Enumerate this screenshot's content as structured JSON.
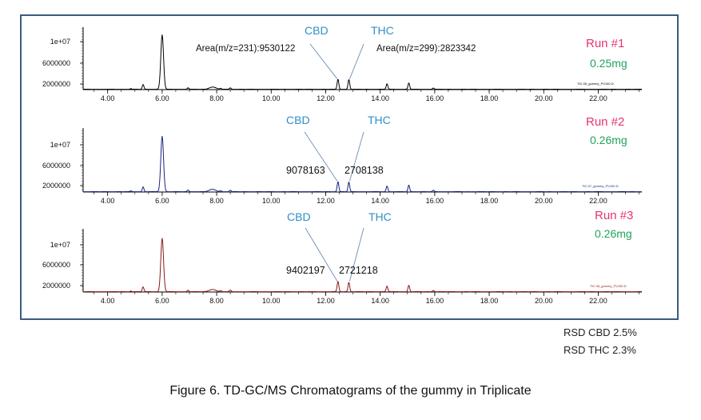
{
  "caption": "Figure 6. TD-GC/MS Chromatograms of the gummy in Triplicate",
  "rsd": [
    "RSD CBD 2.5%",
    "RSD THC 2.3%"
  ],
  "colors": {
    "frame": "#3d5a80",
    "cbd_label": "#2f8fc6",
    "thc_label": "#2f8fc6",
    "run_label": "#e8336f",
    "amount": "#1fa35a"
  },
  "chart_data": [
    {
      "type": "line",
      "run_label": "Run #1",
      "amount": "0.25mg",
      "color": "#000000",
      "trace_tag": "TIC:35_gummy_PV150.D",
      "x_ticks": [
        "4.00",
        "6.00",
        "8.00",
        "10.00",
        "12.00",
        "14.00",
        "16.00",
        "18.00",
        "20.00",
        "22.00"
      ],
      "y_ticks": [
        "1e+07",
        "6000000",
        "2000000"
      ],
      "xlim": [
        3.1,
        23.6
      ],
      "ylim": [
        0,
        14500000
      ],
      "peaks": [
        [
          4.85,
          150000
        ],
        [
          5.3,
          1100000
        ],
        [
          6.0,
          12700000
        ],
        [
          6.95,
          350000
        ],
        [
          7.85,
          520000
        ],
        [
          8.15,
          200000
        ],
        [
          8.5,
          330000
        ],
        [
          12.45,
          2400000
        ],
        [
          12.85,
          2300000
        ],
        [
          14.25,
          1300000
        ],
        [
          15.05,
          1500000
        ],
        [
          15.95,
          300000
        ]
      ],
      "annotations": {
        "cbd": "CBD",
        "thc": "THC",
        "cbd_area": "Area(m/z=231):9530122",
        "thc_area": "Area(m/z=299):2823342"
      }
    },
    {
      "type": "line",
      "run_label": "Run #2",
      "amount": "0.26mg",
      "color": "#1a237e",
      "trace_tag": "TIC:37_gummy_PV150.D",
      "x_ticks": [
        "4.00",
        "6.00",
        "8.00",
        "10.00",
        "12.00",
        "14.00",
        "16.00",
        "18.00",
        "20.00",
        "22.00"
      ],
      "y_ticks": [
        "1e+07",
        "6000000",
        "2000000"
      ],
      "xlim": [
        3.1,
        23.6
      ],
      "ylim": [
        0,
        14500000
      ],
      "peaks": [
        [
          4.85,
          150000
        ],
        [
          5.3,
          1100000
        ],
        [
          6.0,
          12600000
        ],
        [
          6.95,
          350000
        ],
        [
          7.85,
          520000
        ],
        [
          8.15,
          200000
        ],
        [
          8.5,
          330000
        ],
        [
          12.45,
          2300000
        ],
        [
          12.85,
          2200000
        ],
        [
          14.25,
          1300000
        ],
        [
          15.05,
          1500000
        ],
        [
          15.95,
          300000
        ]
      ],
      "annotations": {
        "cbd": "CBD",
        "thc": "THC",
        "cbd_area": "9078163",
        "thc_area": "2708138"
      }
    },
    {
      "type": "line",
      "run_label": "Run #3",
      "amount": "0.26mg",
      "color": "#8b1a1a",
      "trace_tag": "TIC:38_gummy_PV150.D",
      "x_ticks": [
        "4.00",
        "6.00",
        "8.00",
        "10.00",
        "12.00",
        "14.00",
        "16.00",
        "18.00",
        "20.00",
        "22.00"
      ],
      "y_ticks": [
        "1e+07",
        "6000000",
        "2000000"
      ],
      "xlim": [
        3.1,
        23.6
      ],
      "ylim": [
        0,
        14500000
      ],
      "peaks": [
        [
          4.85,
          150000
        ],
        [
          5.3,
          1100000
        ],
        [
          6.0,
          12300000
        ],
        [
          6.95,
          350000
        ],
        [
          7.85,
          520000
        ],
        [
          8.15,
          200000
        ],
        [
          8.5,
          330000
        ],
        [
          12.45,
          2400000
        ],
        [
          12.85,
          2200000
        ],
        [
          14.25,
          1300000
        ],
        [
          15.05,
          1500000
        ],
        [
          15.95,
          300000
        ]
      ],
      "annotations": {
        "cbd": "CBD",
        "thc": "THC",
        "cbd_area": "9402197",
        "thc_area": "2721218"
      }
    }
  ]
}
